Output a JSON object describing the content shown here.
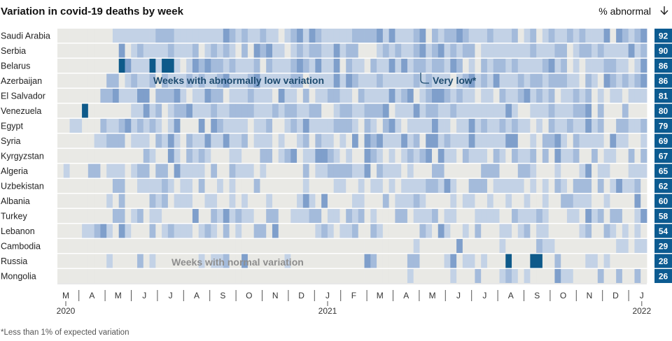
{
  "chart_data": {
    "type": "heatmap",
    "title": "Variation in covid-19 deaths by week",
    "legend_label": "% abnormal",
    "legend_icon": "down-arrow-icon",
    "x_months": [
      "M",
      "A",
      "M",
      "J",
      "J",
      "A",
      "S",
      "O",
      "N",
      "D",
      "J",
      "F",
      "M",
      "A",
      "M",
      "J",
      "J",
      "A",
      "S",
      "O",
      "N",
      "D",
      "J"
    ],
    "x_years": [
      {
        "label": "2020",
        "month_index": 0
      },
      {
        "label": "2021",
        "month_index": 10
      },
      {
        "label": "2022",
        "month_index": 22
      }
    ],
    "annotations": {
      "low": "Weeks with abnormally low variation",
      "very_low": "Very low*",
      "normal": "Weeks with normal variation"
    },
    "footnote": "*Less than 1% of expected variation",
    "colors": {
      "normal": "#e9e9e5",
      "low": "#c3d2e6",
      "mid": "#a4bbdb",
      "strong": "#7f9fcb",
      "very_low": "#0e5a8a",
      "cyan": "#3e8fc3",
      "badge": "#0c5b91"
    },
    "rows": [
      {
        "country": "Saudi Arabia",
        "pct": "92",
        "start_week": 9,
        "very_low_weeks": []
      },
      {
        "country": "Serbia",
        "pct": "90",
        "start_week": 10,
        "very_low_weeks": []
      },
      {
        "country": "Belarus",
        "pct": "86",
        "start_week": 10,
        "very_low_weeks": [
          10,
          15,
          17,
          18
        ]
      },
      {
        "country": "Azerbaijan",
        "pct": "86",
        "start_week": 8,
        "very_low_weeks": []
      },
      {
        "country": "El Salvador",
        "pct": "81",
        "start_week": 7,
        "very_low_weeks": []
      },
      {
        "country": "Venezuela",
        "pct": "80",
        "start_week": 12,
        "very_low_weeks": [
          4
        ]
      },
      {
        "country": "Egypt",
        "pct": "79",
        "start_week": 2,
        "very_low_weeks": []
      },
      {
        "country": "Syria",
        "pct": "69",
        "start_week": 6,
        "very_low_weeks": []
      },
      {
        "country": "Kyrgyzstan",
        "pct": "67",
        "start_week": 13,
        "very_low_weeks": []
      },
      {
        "country": "Algeria",
        "pct": "65",
        "start_week": 0,
        "very_low_weeks": []
      },
      {
        "country": "Uzbekistan",
        "pct": "62",
        "start_week": 7,
        "very_low_weeks": []
      },
      {
        "country": "Albania",
        "pct": "60",
        "start_week": 5,
        "very_low_weeks": []
      },
      {
        "country": "Turkey",
        "pct": "58",
        "start_week": 6,
        "very_low_weeks": []
      },
      {
        "country": "Lebanon",
        "pct": "54",
        "start_week": 2,
        "very_low_weeks": []
      },
      {
        "country": "Cambodia",
        "pct": "29",
        "start_week": 55,
        "very_low_weeks": []
      },
      {
        "country": "Russia",
        "pct": "28",
        "start_week": 8,
        "very_low_weeks": [
          73,
          77,
          78
        ]
      },
      {
        "country": "Mongolia",
        "pct": "26",
        "start_week": 57,
        "very_low_weeks": []
      }
    ]
  }
}
